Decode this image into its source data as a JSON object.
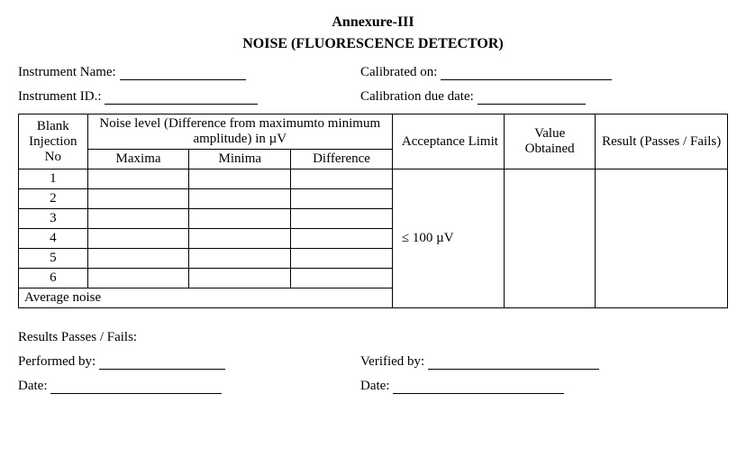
{
  "header": {
    "annex": "Annexure-III",
    "title": "NOISE (FLUORESCENCE DETECTOR)"
  },
  "fields": {
    "instrument_name_label": "Instrument Name:",
    "instrument_id_label": "Instrument ID.:",
    "calibrated_on_label": "Calibrated on:",
    "calibration_due_label": "Calibration due date:",
    "results_label": "Results Passes / Fails:",
    "performed_by_label": "Performed by:",
    "verified_by_label": "Verified by:",
    "date_label": "Date:"
  },
  "table": {
    "col_blank": "Blank Injection No",
    "col_noise_group": "Noise level (Difference from maximumto minimum amplitude) in µV",
    "col_maxima": "Maxima",
    "col_minima": "Minima",
    "col_diff": "Difference",
    "col_accept": "Acceptance Limit",
    "col_value": "Value Obtained",
    "col_result": "Result (Passes / Fails)",
    "accept_value": "≤  100 µV",
    "rows": [
      "1",
      "2",
      "3",
      "4",
      "5",
      "6"
    ],
    "avg_label": "Average noise"
  }
}
